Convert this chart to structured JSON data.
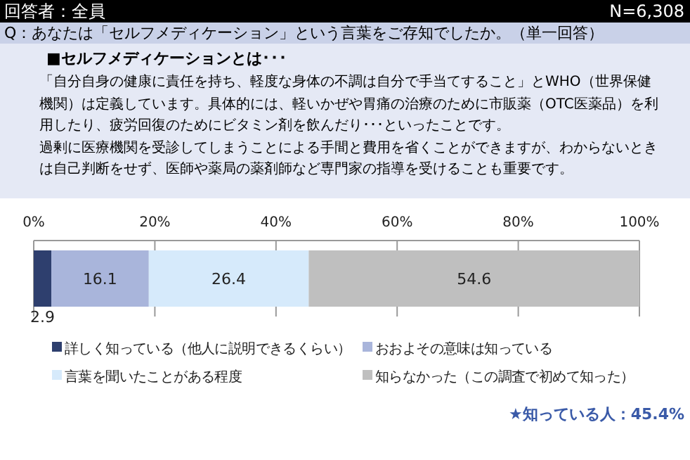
{
  "chart_data": {
    "type": "bar",
    "orientation": "horizontal",
    "stacked": true,
    "subtitle": "回答者：全員",
    "title": "Q：あなたは「セルフメディケーション」という言葉をご存知でしたか。（単一回答）",
    "annotations": [
      "N=6,308",
      "■セルフメディケーションとは･･･",
      "「自分自身の健康に責任を持ち、軽度な身体の不調は自分で手当てすること」とWHO（世界保健機関）は定義しています。具体的には、軽いかぜや胃痛の治療のために市販薬（OTC医薬品）を利用したり、疲労回復のためにビタミン剤を飲んだり･･･といったことです。",
      "過剰に医療機関を受診してしまうことによる手間と費用を省くことができますが、わからないときは自己判断をせず、医師や薬局の薬剤師など専門家の指導を受けることも重要です。",
      "★知っている人：45.4%"
    ],
    "categories": [
      null
    ],
    "series": [
      {
        "name": "詳しく知っている（他人に説明できるくらい）",
        "color": "#2e3f6e",
        "values": [
          2.9
        ]
      },
      {
        "name": "おおよその意味は知っている",
        "color": "#a9b5db",
        "values": [
          16.1
        ]
      },
      {
        "name": "言葉を聞いたことがある程度",
        "color": "#d6eafb",
        "values": [
          26.4
        ]
      },
      {
        "name": "知らなかった（この調査で初めて知った）",
        "color": "#bfbfbf",
        "values": [
          54.6
        ]
      }
    ],
    "xlim": [
      0,
      100
    ],
    "xticks": [
      {
        "value": 0,
        "label": "0%"
      },
      {
        "value": 20,
        "label": "20%"
      },
      {
        "value": 40,
        "label": "40%"
      },
      {
        "value": 60,
        "label": "60%"
      },
      {
        "value": 80,
        "label": "80%"
      },
      {
        "value": 100,
        "label": "100%"
      }
    ],
    "grid": "x",
    "data_labels": true,
    "legend": "bottom"
  }
}
